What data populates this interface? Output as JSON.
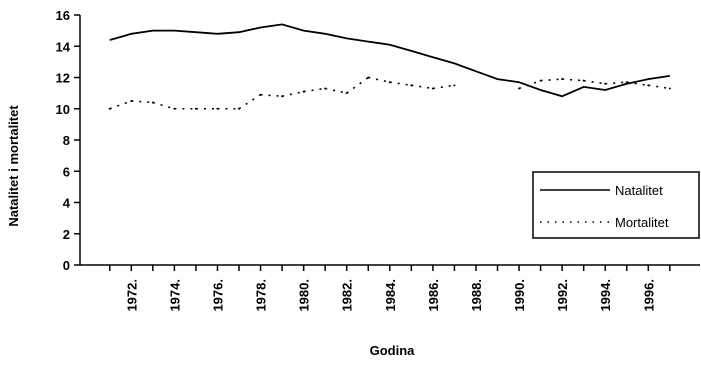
{
  "chart_data": {
    "type": "line",
    "title": "",
    "xlabel": "Godina",
    "ylabel": "Natalitet i mortalitet",
    "ylim": [
      0,
      16
    ],
    "yticks": [
      0,
      2,
      4,
      6,
      8,
      10,
      12,
      14,
      16
    ],
    "x": [
      1971,
      1972,
      1973,
      1974,
      1975,
      1976,
      1977,
      1978,
      1979,
      1980,
      1981,
      1982,
      1983,
      1984,
      1985,
      1986,
      1987,
      1988,
      1989,
      1990,
      1991,
      1992,
      1993,
      1994,
      1995,
      1996,
      1997
    ],
    "xtick_labels": [
      "1972.",
      "1974.",
      "1976.",
      "1978.",
      "1980.",
      "1982.",
      "1984.",
      "1986.",
      "1988.",
      "1990.",
      "1992.",
      "1994.",
      "1996."
    ],
    "grid": false,
    "legend_position": "right",
    "series": [
      {
        "name": "Natalitet",
        "style": "solid",
        "color": "#000000",
        "values": [
          14.4,
          14.8,
          15.0,
          15.0,
          14.9,
          14.8,
          14.9,
          15.2,
          15.4,
          15.0,
          14.8,
          14.5,
          14.3,
          14.1,
          13.7,
          13.3,
          12.9,
          12.4,
          11.9,
          11.7,
          11.2,
          10.8,
          11.4,
          11.2,
          11.6,
          11.9,
          12.1
        ]
      },
      {
        "name": "Mortalitet",
        "style": "dotted",
        "color": "#000000",
        "values": [
          10.0,
          10.5,
          10.4,
          10.0,
          10.0,
          10.0,
          10.0,
          10.9,
          10.8,
          11.1,
          11.3,
          11.0,
          12.0,
          11.7,
          11.5,
          11.3,
          11.5,
          null,
          null,
          11.3,
          11.8,
          11.9,
          11.8,
          11.6,
          11.7,
          11.5,
          11.3
        ]
      }
    ]
  }
}
